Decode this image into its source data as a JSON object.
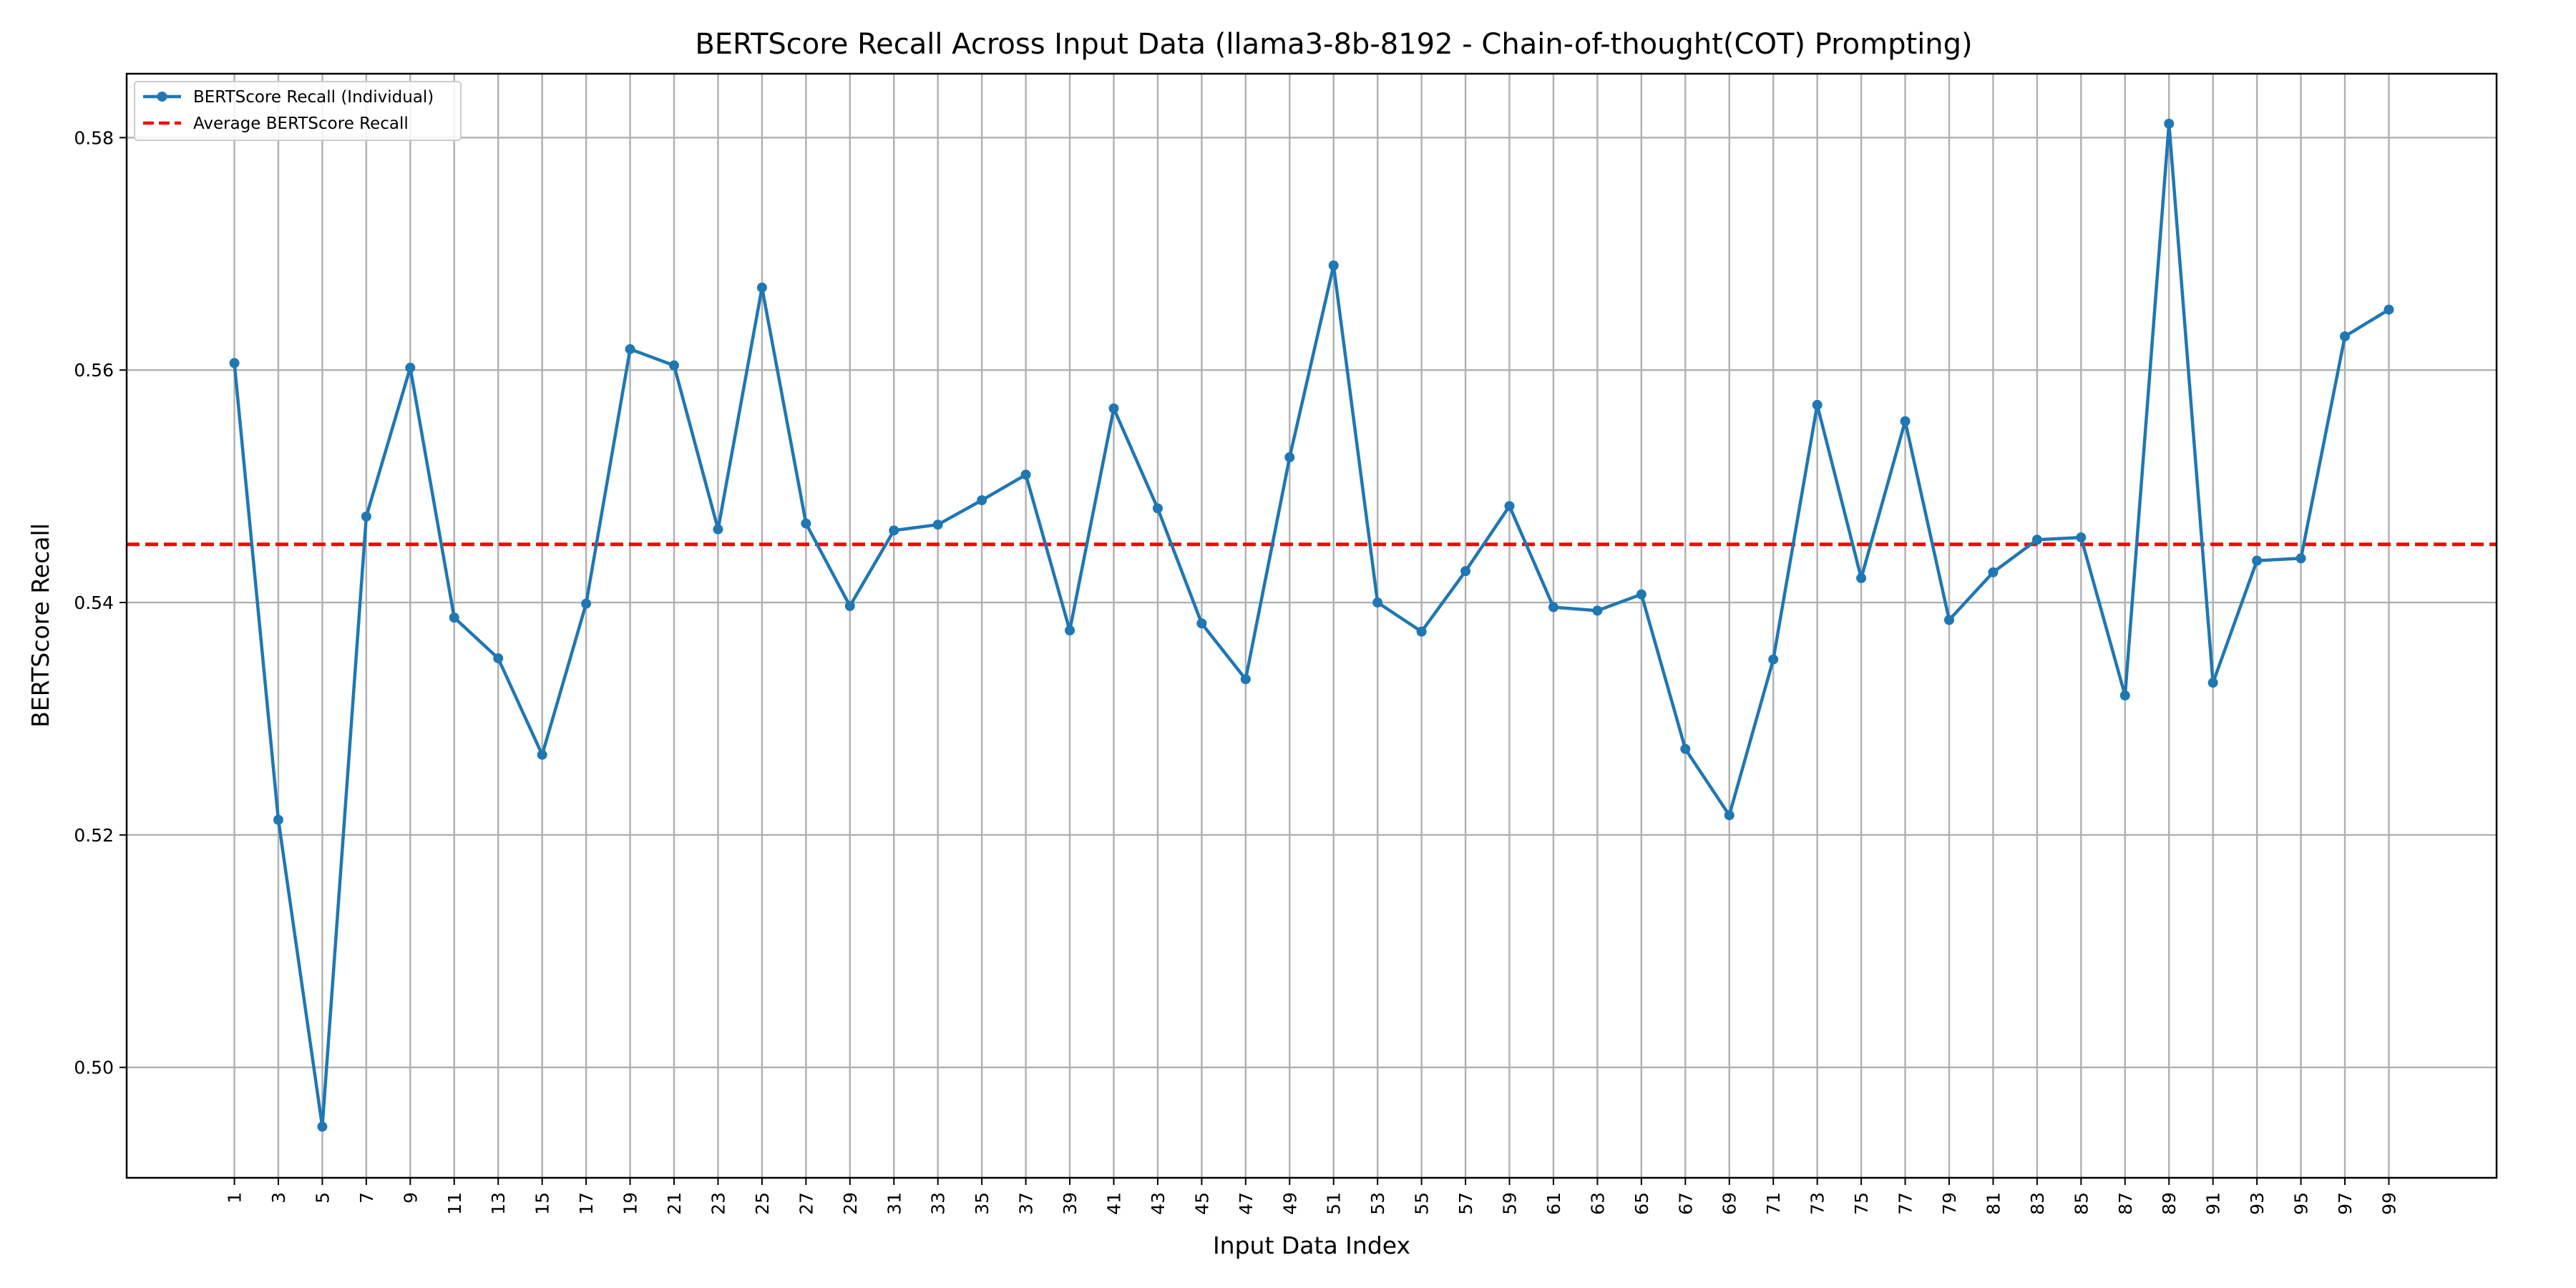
{
  "chart_data": {
    "type": "line",
    "title": "BERTScore Recall Across Input Data (llama3-8b-8192 - Chain-of-thought(COT) Prompting)",
    "xlabel": "Input Data Index",
    "ylabel": "BERTScore Recall",
    "x": [
      1,
      3,
      5,
      7,
      9,
      11,
      13,
      15,
      17,
      19,
      21,
      23,
      25,
      27,
      29,
      31,
      33,
      35,
      37,
      39,
      41,
      43,
      45,
      47,
      49,
      51,
      53,
      55,
      57,
      59,
      61,
      63,
      65,
      67,
      69,
      71,
      73,
      75,
      77,
      79,
      81,
      83,
      85,
      87,
      89,
      91,
      93,
      95,
      97,
      99
    ],
    "x_ticks": [
      "1",
      "3",
      "5",
      "7",
      "9",
      "11",
      "13",
      "15",
      "17",
      "19",
      "21",
      "23",
      "25",
      "27",
      "29",
      "31",
      "33",
      "35",
      "37",
      "39",
      "41",
      "43",
      "45",
      "47",
      "49",
      "51",
      "53",
      "55",
      "57",
      "59",
      "61",
      "63",
      "65",
      "67",
      "69",
      "71",
      "73",
      "75",
      "77",
      "79",
      "81",
      "83",
      "85",
      "87",
      "89",
      "91",
      "93",
      "95",
      "97",
      "99"
    ],
    "xlim": [
      -3.9,
      103.9
    ],
    "y_ticks": [
      "0.50",
      "0.52",
      "0.54",
      "0.56",
      "0.58"
    ],
    "y_tick_values": [
      0.5,
      0.52,
      0.54,
      0.56,
      0.58
    ],
    "ylim": [
      0.4905,
      0.5855
    ],
    "grid": true,
    "legend_position": "top-left",
    "series": [
      {
        "name": "BERTScore Recall (Individual)",
        "color": "#1f77b4",
        "style": "solid-with-markers",
        "values": [
          0.5606,
          0.5213,
          0.4949,
          0.5474,
          0.5602,
          0.5387,
          0.5352,
          0.5269,
          0.5399,
          0.5618,
          0.5604,
          0.5463,
          0.5671,
          0.5468,
          0.5397,
          0.5462,
          0.5467,
          0.5488,
          0.551,
          0.5376,
          0.5567,
          0.5481,
          0.5382,
          0.5334,
          0.5525,
          0.569,
          0.54,
          0.5375,
          0.5427,
          0.5483,
          0.5396,
          0.5393,
          0.5407,
          0.5274,
          0.5217,
          0.5351,
          0.557,
          0.5421,
          0.5556,
          0.5385,
          0.5426,
          0.5454,
          0.5456,
          0.532,
          0.5812,
          0.5331,
          0.5436,
          0.5438,
          0.5629,
          0.5652
        ]
      },
      {
        "name": "Average BERTScore Recall",
        "color": "#ff0000",
        "style": "dashed",
        "value": 0.545
      }
    ]
  }
}
